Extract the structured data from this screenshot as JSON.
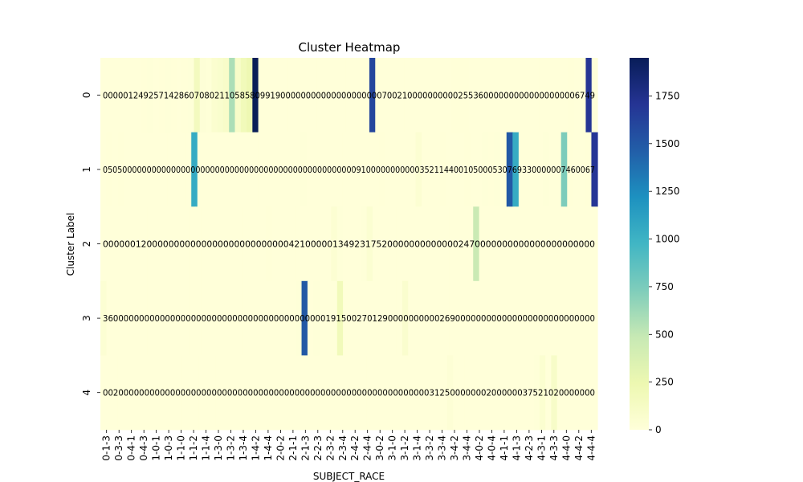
{
  "chart_data": {
    "type": "heatmap",
    "title": "Cluster Heatmap",
    "xlabel": "SUBJECT_RACE",
    "ylabel": "Cluster Label",
    "row_labels": [
      "0",
      "1",
      "2",
      "3",
      "4"
    ],
    "x_tick_labels": [
      "0-1-3",
      "0-3-3",
      "0-4-1",
      "0-4-3",
      "1-0-1",
      "1-0-3",
      "1-1-0",
      "1-1-2",
      "1-1-4",
      "1-3-0",
      "1-3-2",
      "1-3-4",
      "1-4-2",
      "1-4-4",
      "2-0-2",
      "2-1-1",
      "2-1-3",
      "2-2-3",
      "2-3-2",
      "2-3-4",
      "2-4-2",
      "2-4-4",
      "3-0-2",
      "3-1-0",
      "3-1-2",
      "3-1-4",
      "3-3-2",
      "3-3-4",
      "3-4-2",
      "3-4-4",
      "4-0-2",
      "4-0-4",
      "4-1-1",
      "4-1-3",
      "4-2-3",
      "4-3-1",
      "4-3-3",
      "4-4-0",
      "4-4-2",
      "4-4-4"
    ],
    "values": [
      [
        0,
        0,
        0,
        0,
        0,
        1,
        2,
        4,
        9,
        2,
        5,
        7,
        5,
        1,
        4,
        8,
        160,
        21,
        10,
        58,
        75,
        100,
        580,
        98,
        190,
        230,
        1950,
        0,
        0,
        0,
        0,
        0,
        0,
        0,
        0,
        0,
        0,
        0,
        0,
        0,
        0,
        0,
        0,
        0,
        0,
        0,
        1600,
        2,
        1,
        0,
        0,
        0,
        0,
        0,
        0,
        0,
        0,
        0,
        0,
        2,
        5,
        5,
        6,
        0,
        0,
        0,
        0,
        0,
        0,
        0,
        0,
        0,
        0,
        0,
        0,
        0,
        0,
        0,
        0,
        0,
        6,
        1,
        7,
        1700,
        0
      ],
      [
        0,
        5,
        0,
        5,
        0,
        0,
        0,
        0,
        0,
        0,
        0,
        0,
        0,
        0,
        0,
        1050,
        0,
        0,
        0,
        0,
        0,
        0,
        0,
        0,
        0,
        0,
        0,
        0,
        0,
        0,
        0,
        0,
        0,
        9,
        1,
        0,
        0,
        0,
        0,
        0,
        0,
        0,
        0,
        0,
        0,
        3,
        5,
        2,
        1,
        2,
        1,
        0,
        40,
        0,
        1,
        0,
        5,
        0,
        0,
        0,
        5,
        3,
        0,
        7,
        6,
        9,
        3,
        1500,
        1050,
        0,
        0,
        0,
        0,
        7,
        0,
        0,
        740,
        6,
        0,
        0,
        6,
        1700
      ],
      [
        0,
        0,
        0,
        0,
        0,
        0,
        0,
        1,
        2,
        0,
        0,
        0,
        0,
        0,
        0,
        0,
        0,
        0,
        0,
        0,
        0,
        0,
        0,
        0,
        0,
        0,
        0,
        0,
        4,
        2,
        1,
        0,
        0,
        0,
        0,
        0,
        0,
        1,
        3,
        40,
        9,
        2,
        3,
        1,
        7,
        50,
        2,
        0,
        0,
        0,
        0,
        0,
        0,
        0,
        0,
        0,
        0,
        0,
        0,
        0,
        0,
        0,
        2,
        470,
        0,
        0,
        0,
        0,
        0,
        0,
        0,
        0,
        0,
        0,
        0,
        0,
        0,
        0,
        0,
        0,
        0,
        0,
        0,
        0
      ],
      [
        36,
        0,
        0,
        0,
        0,
        0,
        0,
        0,
        0,
        0,
        0,
        0,
        0,
        0,
        0,
        0,
        0,
        0,
        0,
        0,
        0,
        0,
        0,
        0,
        0,
        0,
        0,
        0,
        0,
        0,
        0,
        0,
        1,
        9,
        1500,
        2,
        7,
        0,
        1,
        2,
        190,
        0,
        0,
        0,
        0,
        0,
        0,
        0,
        0,
        0,
        2,
        69,
        0,
        0,
        0,
        0,
        0,
        0,
        0,
        0,
        0,
        0,
        0,
        0,
        0,
        0,
        0,
        0,
        0,
        0,
        0,
        0,
        0,
        0,
        0,
        0,
        0,
        0,
        0,
        0,
        0,
        0,
        0,
        0
      ],
      [
        0,
        0,
        2,
        0,
        0,
        0,
        0,
        0,
        0,
        0,
        0,
        0,
        0,
        0,
        0,
        0,
        0,
        0,
        0,
        0,
        0,
        0,
        0,
        0,
        0,
        0,
        0,
        0,
        0,
        0,
        0,
        0,
        0,
        0,
        0,
        0,
        0,
        0,
        0,
        0,
        0,
        0,
        0,
        0,
        0,
        0,
        0,
        0,
        0,
        0,
        0,
        0,
        0,
        0,
        0,
        0,
        0,
        0,
        3,
        1,
        25,
        0,
        0,
        0,
        0,
        0,
        0,
        2,
        0,
        0,
        0,
        0,
        0,
        0,
        3,
        7,
        52,
        1,
        102,
        0,
        0,
        0,
        0,
        0,
        0,
        0
      ]
    ],
    "cell_labels": [
      "0000012492571428607080211058580991900000000000000000000700210000000000255360000000000000000006749",
      "05050000000000000000000000000000000000000000000000009100000000000352114400105000530769330000007460067",
      "000000120000000000000000000000000042100000134923175200000000000002470000000000000000000000",
      "36000000000000000000000000000000000000000001915002701290000000000269000000000000000000000000000",
      "00200000000000000000000000000000000000000000000000000000000000031250000000200000037521020000000"
    ],
    "colorbar_ticks": [
      0,
      250,
      500,
      750,
      1000,
      1250,
      1500,
      1750
    ],
    "color_range": [
      0,
      1950
    ],
    "colormap": "YlGnBu"
  }
}
